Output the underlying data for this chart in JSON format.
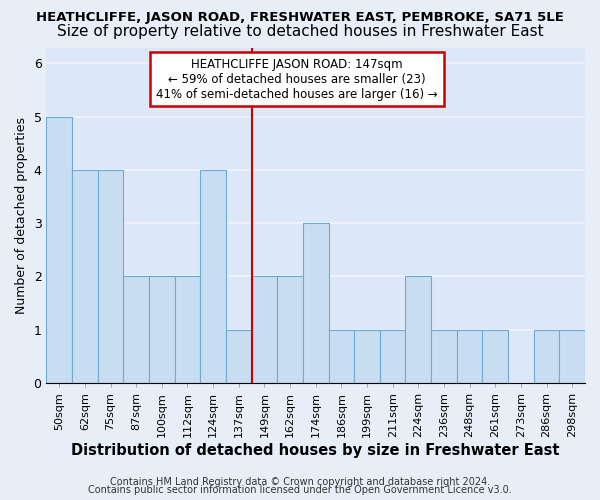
{
  "title": "HEATHCLIFFE, JASON ROAD, FRESHWATER EAST, PEMBROKE, SA71 5LE",
  "subtitle": "Size of property relative to detached houses in Freshwater East",
  "xlabel": "Distribution of detached houses by size in Freshwater East",
  "ylabel": "Number of detached properties",
  "categories": [
    "50sqm",
    "62sqm",
    "75sqm",
    "87sqm",
    "100sqm",
    "112sqm",
    "124sqm",
    "137sqm",
    "149sqm",
    "162sqm",
    "174sqm",
    "186sqm",
    "199sqm",
    "211sqm",
    "224sqm",
    "236sqm",
    "248sqm",
    "261sqm",
    "273sqm",
    "286sqm",
    "298sqm"
  ],
  "values": [
    5,
    4,
    4,
    2,
    2,
    2,
    4,
    1,
    2,
    2,
    3,
    1,
    1,
    1,
    2,
    1,
    1,
    1,
    0,
    1,
    1
  ],
  "bar_color": "#c9ddf2",
  "bar_edge_color": "#6aaad4",
  "vline_x_index": 8,
  "vline_color": "#cc0000",
  "annotation_text": "HEATHCLIFFE JASON ROAD: 147sqm\n← 59% of detached houses are smaller (23)\n41% of semi-detached houses are larger (16) →",
  "annotation_box_color": "#ffffff",
  "annotation_box_edge": "#cc0000",
  "ylim": [
    0,
    6.3
  ],
  "yticks": [
    0,
    1,
    2,
    3,
    4,
    5,
    6
  ],
  "fig_background_color": "#e8eef8",
  "axes_background_color": "#dce8f8",
  "grid_color": "#f0f4ff",
  "footer_line1": "Contains HM Land Registry data © Crown copyright and database right 2024.",
  "footer_line2": "Contains public sector information licensed under the Open Government Licence v3.0.",
  "title_fontsize": 9.5,
  "subtitle_fontsize": 11,
  "ylabel_fontsize": 9,
  "xlabel_fontsize": 10.5,
  "tick_fontsize": 8,
  "footer_fontsize": 7,
  "annot_fontsize": 8.5
}
